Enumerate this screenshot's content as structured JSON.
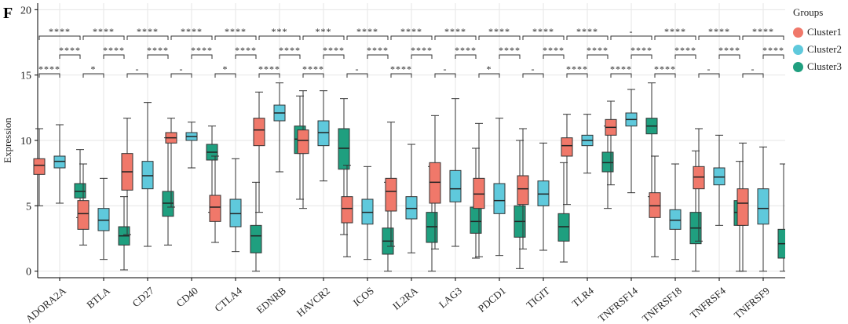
{
  "panel_label": "F",
  "colors": {
    "cluster1": "#f0786a",
    "cluster2": "#5fc9dc",
    "cluster3": "#1f9f7f"
  },
  "chart_data": {
    "type": "box",
    "ylabel": "Expression",
    "xlabel": "",
    "ylim": [
      -0.5,
      20.5
    ],
    "yticks": [
      0,
      5,
      10,
      15,
      20
    ],
    "grid": true,
    "legend": {
      "title": "Groups",
      "position": "right",
      "entries": [
        "Cluster1",
        "Cluster2",
        "Cluster3"
      ]
    },
    "categories": [
      "ADORA2A",
      "BTLA",
      "CD27",
      "CD40",
      "CTLA4",
      "EDNRB",
      "HAVCR2",
      "ICOS",
      "IL2RA",
      "LAG3",
      "PDCD1",
      "TIGIT",
      "TLR4",
      "TNFRSF14",
      "TNFRSF18",
      "TNFRSF4",
      "TNFRSF9"
    ],
    "series": [
      {
        "name": "Cluster1",
        "boxes": [
          {
            "min": 5.0,
            "q1": 7.4,
            "median": 8.1,
            "q3": 8.6,
            "max": 10.9
          },
          {
            "min": 2.0,
            "q1": 3.2,
            "median": 4.4,
            "q3": 5.4,
            "max": 8.2
          },
          {
            "min": 2.8,
            "q1": 6.2,
            "median": 7.6,
            "q3": 9.0,
            "max": 11.7
          },
          {
            "min": 4.9,
            "q1": 9.8,
            "median": 10.2,
            "q3": 10.6,
            "max": 11.7
          },
          {
            "min": 2.2,
            "q1": 3.8,
            "median": 4.9,
            "q3": 5.8,
            "max": 8.8
          },
          {
            "min": 4.5,
            "q1": 9.6,
            "median": 10.8,
            "q3": 11.7,
            "max": 13.7
          },
          {
            "min": 4.8,
            "q1": 9.0,
            "median": 10.0,
            "q3": 10.8,
            "max": 13.8
          },
          {
            "min": 1.1,
            "q1": 3.7,
            "median": 4.8,
            "q3": 5.7,
            "max": 8.1
          },
          {
            "min": 1.9,
            "q1": 4.6,
            "median": 6.1,
            "q3": 7.1,
            "max": 11.4
          },
          {
            "min": 1.7,
            "q1": 5.2,
            "median": 6.8,
            "q3": 8.3,
            "max": 11.9
          },
          {
            "min": 1.1,
            "q1": 4.8,
            "median": 5.9,
            "q3": 7.1,
            "max": 11.3
          },
          {
            "min": 1.7,
            "q1": 5.1,
            "median": 6.3,
            "q3": 7.3,
            "max": 10.9
          },
          {
            "min": 5.1,
            "q1": 8.8,
            "median": 9.6,
            "q3": 10.2,
            "max": 12.0
          },
          {
            "min": 6.6,
            "q1": 10.4,
            "median": 11.0,
            "q3": 11.6,
            "max": 13.0
          },
          {
            "min": 1.1,
            "q1": 4.1,
            "median": 5.0,
            "q3": 6.0,
            "max": 8.8
          },
          {
            "min": 2.3,
            "q1": 6.3,
            "median": 7.2,
            "q3": 8.0,
            "max": 10.9
          },
          {
            "min": 0.0,
            "q1": 3.5,
            "median": 5.2,
            "q3": 6.3,
            "max": 9.8
          }
        ]
      },
      {
        "name": "Cluster2",
        "boxes": [
          {
            "min": 5.2,
            "q1": 7.9,
            "median": 8.4,
            "q3": 8.8,
            "max": 11.2
          },
          {
            "min": 0.9,
            "q1": 3.1,
            "median": 3.9,
            "q3": 4.8,
            "max": 7.1
          },
          {
            "min": 1.9,
            "q1": 6.3,
            "median": 7.3,
            "q3": 8.4,
            "max": 12.9
          },
          {
            "min": 7.9,
            "q1": 10.0,
            "median": 10.3,
            "q3": 10.6,
            "max": 11.4
          },
          {
            "min": 1.5,
            "q1": 3.4,
            "median": 4.4,
            "q3": 5.5,
            "max": 8.6
          },
          {
            "min": 7.6,
            "q1": 11.5,
            "median": 12.1,
            "q3": 12.7,
            "max": 14.4
          },
          {
            "min": 6.9,
            "q1": 9.6,
            "median": 10.6,
            "q3": 11.5,
            "max": 13.8
          },
          {
            "min": 0.9,
            "q1": 3.6,
            "median": 4.5,
            "q3": 5.5,
            "max": 8.0
          },
          {
            "min": 1.4,
            "q1": 4.0,
            "median": 4.8,
            "q3": 5.7,
            "max": 9.7
          },
          {
            "min": 1.9,
            "q1": 5.3,
            "median": 6.3,
            "q3": 7.7,
            "max": 13.2
          },
          {
            "min": 1.2,
            "q1": 4.4,
            "median": 5.4,
            "q3": 6.7,
            "max": 11.7
          },
          {
            "min": 1.6,
            "q1": 5.0,
            "median": 5.9,
            "q3": 6.9,
            "max": 9.8
          },
          {
            "min": 7.5,
            "q1": 9.6,
            "median": 10.0,
            "q3": 10.4,
            "max": 12.0
          },
          {
            "min": 6.0,
            "q1": 11.1,
            "median": 11.6,
            "q3": 12.1,
            "max": 13.9
          },
          {
            "min": 0.9,
            "q1": 3.2,
            "median": 3.9,
            "q3": 4.7,
            "max": 8.2
          },
          {
            "min": 3.5,
            "q1": 6.6,
            "median": 7.2,
            "q3": 7.9,
            "max": 10.4
          },
          {
            "min": 0.0,
            "q1": 3.6,
            "median": 4.8,
            "q3": 6.3,
            "max": 9.5
          }
        ]
      },
      {
        "name": "Cluster3",
        "boxes": [
          {
            "min": 4.1,
            "q1": 5.6,
            "median": 6.1,
            "q3": 6.7,
            "max": 9.3
          },
          {
            "min": 0.1,
            "q1": 2.0,
            "median": 2.7,
            "q3": 3.4,
            "max": 5.7
          },
          {
            "min": 2.0,
            "q1": 4.2,
            "median": 5.2,
            "q3": 6.1,
            "max": 10.2
          },
          {
            "min": 4.5,
            "q1": 8.5,
            "median": 9.1,
            "q3": 9.7,
            "max": 11.1
          },
          {
            "min": 0.0,
            "q1": 1.4,
            "median": 2.7,
            "q3": 3.5,
            "max": 6.8
          },
          {
            "min": 5.5,
            "q1": 9.0,
            "median": 10.1,
            "q3": 11.1,
            "max": 13.4
          },
          {
            "min": 2.8,
            "q1": 7.8,
            "median": 9.4,
            "q3": 10.9,
            "max": 13.2
          },
          {
            "min": 0.0,
            "q1": 1.3,
            "median": 2.3,
            "q3": 3.3,
            "max": 6.8
          },
          {
            "min": 0.0,
            "q1": 2.2,
            "median": 3.4,
            "q3": 4.5,
            "max": 8.0
          },
          {
            "min": 1.0,
            "q1": 2.9,
            "median": 3.8,
            "q3": 4.9,
            "max": 9.4
          },
          {
            "min": 0.2,
            "q1": 2.6,
            "median": 3.8,
            "q3": 5.0,
            "max": 10.0
          },
          {
            "min": 0.7,
            "q1": 2.3,
            "median": 3.4,
            "q3": 4.4,
            "max": 8.3
          },
          {
            "min": 4.8,
            "q1": 7.6,
            "median": 8.3,
            "q3": 9.1,
            "max": 11.1
          },
          {
            "min": 5.7,
            "q1": 10.5,
            "median": 11.1,
            "q3": 11.7,
            "max": 14.4
          },
          {
            "min": 0.0,
            "q1": 2.1,
            "median": 3.3,
            "q3": 4.5,
            "max": 9.2
          },
          {
            "min": 0.0,
            "q1": 3.5,
            "median": 4.5,
            "q3": 5.4,
            "max": 8.4
          },
          {
            "min": 0.0,
            "q1": 1.0,
            "median": 2.1,
            "q3": 3.2,
            "max": 8.2
          }
        ]
      }
    ],
    "significance": [
      {
        "top": "****",
        "mid": "****",
        "low": "****"
      },
      {
        "top": "****",
        "mid": "****",
        "low": "*"
      },
      {
        "top": "****",
        "mid": "****",
        "low": "-"
      },
      {
        "top": "****",
        "mid": "****",
        "low": "-"
      },
      {
        "top": "****",
        "mid": "****",
        "low": "*"
      },
      {
        "top": "***",
        "mid": "****",
        "low": "****"
      },
      {
        "top": "***",
        "mid": "****",
        "low": "****"
      },
      {
        "top": "****",
        "mid": "****",
        "low": "-"
      },
      {
        "top": "****",
        "mid": "****",
        "low": "****"
      },
      {
        "top": "****",
        "mid": "****",
        "low": "-"
      },
      {
        "top": "****",
        "mid": "****",
        "low": "*"
      },
      {
        "top": "****",
        "mid": "****",
        "low": "-"
      },
      {
        "top": "****",
        "mid": "****",
        "low": "****"
      },
      {
        "top": "-",
        "mid": "****",
        "low": "****"
      },
      {
        "top": "****",
        "mid": "****",
        "low": "****"
      },
      {
        "top": "****",
        "mid": "****",
        "low": "-"
      },
      {
        "top": "****",
        "mid": "****",
        "low": "-"
      }
    ]
  }
}
